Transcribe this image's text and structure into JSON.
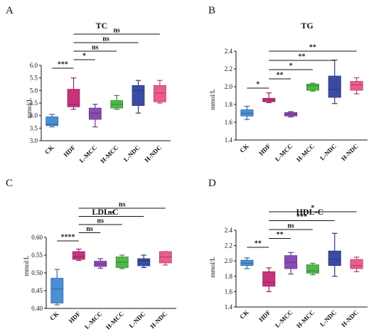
{
  "chart_data": [
    {
      "type": "box",
      "panel_letter": "A",
      "title": "TC",
      "ylabel": "mmol/L",
      "ylim": [
        3.0,
        6.0
      ],
      "yticks": [
        "3.0",
        "3.5",
        "4.0",
        "4.5",
        "5.0",
        "5.5",
        "6.0"
      ],
      "categories": [
        "CK",
        "HDF",
        "L-MCC",
        "H-MCC",
        "L-NDC",
        "H-NDC"
      ],
      "colors": [
        "#4a8fd6",
        "#c8327b",
        "#8b4bb5",
        "#4fb84a",
        "#3a4ba3",
        "#ec5b8c"
      ],
      "boxes": [
        {
          "min": 3.55,
          "q1": 3.6,
          "median": 3.65,
          "q3": 3.95,
          "max": 4.05
        },
        {
          "min": 4.25,
          "q1": 4.35,
          "median": 4.45,
          "q3": 5.05,
          "max": 5.5
        },
        {
          "min": 3.55,
          "q1": 3.85,
          "median": 4.1,
          "q3": 4.3,
          "max": 4.45
        },
        {
          "min": 4.25,
          "q1": 4.3,
          "median": 4.45,
          "q3": 4.6,
          "max": 4.8
        },
        {
          "min": 4.1,
          "q1": 4.4,
          "median": 5.0,
          "q3": 5.2,
          "max": 5.4
        },
        {
          "min": 4.5,
          "q1": 4.55,
          "median": 4.9,
          "q3": 5.2,
          "max": 5.4
        }
      ],
      "comparisons": [
        {
          "from": 0,
          "to": 1,
          "label": "***"
        },
        {
          "from": 1,
          "to": 2,
          "label": "*"
        },
        {
          "from": 1,
          "to": 3,
          "label": "ns"
        },
        {
          "from": 1,
          "to": 4,
          "label": "ns"
        },
        {
          "from": 1,
          "to": 5,
          "label": "ns"
        }
      ]
    },
    {
      "type": "box",
      "panel_letter": "B",
      "title": "TG",
      "ylabel": "mmol/L",
      "ylim": [
        1.4,
        2.4
      ],
      "yticks": [
        "1.4",
        "1.6",
        "1.8",
        "2.0",
        "2.2",
        "2.4"
      ],
      "categories": [
        "CK",
        "HDF",
        "L-MCC",
        "H-MCC",
        "L-NDC",
        "H-NDC"
      ],
      "colors": [
        "#4a8fd6",
        "#c8327b",
        "#8b4bb5",
        "#4fb84a",
        "#3a4ba3",
        "#ec5b8c"
      ],
      "boxes": [
        {
          "min": 1.63,
          "q1": 1.67,
          "median": 1.7,
          "q3": 1.74,
          "max": 1.78
        },
        {
          "min": 1.82,
          "q1": 1.83,
          "median": 1.85,
          "q3": 1.87,
          "max": 1.93
        },
        {
          "min": 1.66,
          "q1": 1.67,
          "median": 1.69,
          "q3": 1.71,
          "max": 1.72
        },
        {
          "min": 1.95,
          "q1": 1.96,
          "median": 2.01,
          "q3": 2.03,
          "max": 2.04
        },
        {
          "min": 1.81,
          "q1": 1.88,
          "median": 1.97,
          "q3": 2.12,
          "max": 2.3
        },
        {
          "min": 1.92,
          "q1": 1.96,
          "median": 2.02,
          "q3": 2.06,
          "max": 2.1
        }
      ],
      "comparisons": [
        {
          "from": 0,
          "to": 1,
          "label": "*"
        },
        {
          "from": 1,
          "to": 2,
          "label": "**"
        },
        {
          "from": 1,
          "to": 3,
          "label": "*"
        },
        {
          "from": 1,
          "to": 4,
          "label": "**"
        },
        {
          "from": 1,
          "to": 5,
          "label": "**"
        }
      ]
    },
    {
      "type": "box",
      "panel_letter": "C",
      "title": "LDL-C",
      "ylabel": "mmol/L",
      "ylim": [
        0.4,
        0.6
      ],
      "yticks": [
        "0.40",
        "0.45",
        "0.50",
        "0.55",
        "0.60"
      ],
      "categories": [
        "CK",
        "HDF",
        "L-MCC",
        "H-MCC",
        "L-NDC",
        "H-NDC"
      ],
      "colors": [
        "#4a8fd6",
        "#c8327b",
        "#8b4bb5",
        "#4fb84a",
        "#3a4ba3",
        "#ec5b8c"
      ],
      "boxes": [
        {
          "min": 0.41,
          "q1": 0.415,
          "median": 0.455,
          "q3": 0.485,
          "max": 0.51
        },
        {
          "min": 0.535,
          "q1": 0.538,
          "median": 0.545,
          "q3": 0.56,
          "max": 0.567
        },
        {
          "min": 0.513,
          "q1": 0.518,
          "median": 0.525,
          "q3": 0.533,
          "max": 0.54
        },
        {
          "min": 0.512,
          "q1": 0.515,
          "median": 0.53,
          "q3": 0.545,
          "max": 0.55
        },
        {
          "min": 0.515,
          "q1": 0.52,
          "median": 0.535,
          "q3": 0.54,
          "max": 0.55
        },
        {
          "min": 0.522,
          "q1": 0.528,
          "median": 0.545,
          "q3": 0.56,
          "max": 0.56
        }
      ],
      "comparisons": [
        {
          "from": 0,
          "to": 1,
          "label": "****"
        },
        {
          "from": 1,
          "to": 2,
          "label": "ns"
        },
        {
          "from": 1,
          "to": 3,
          "label": "ns"
        },
        {
          "from": 1,
          "to": 4,
          "label": "ns"
        },
        {
          "from": 1,
          "to": 5,
          "label": "ns"
        }
      ]
    },
    {
      "type": "box",
      "panel_letter": "D",
      "title": "HDL-C",
      "ylabel": "mmol/L",
      "ylim": [
        1.4,
        2.4
      ],
      "yticks": [
        "1.4",
        "1.6",
        "1.8",
        "2.0",
        "2.2",
        "2.4"
      ],
      "categories": [
        "CK",
        "HDF",
        "L-MCC",
        "H-MCC",
        "L-NDC",
        "H-NDC"
      ],
      "colors": [
        "#4a8fd6",
        "#c8327b",
        "#8b4bb5",
        "#4fb84a",
        "#3a4ba3",
        "#ec5b8c"
      ],
      "boxes": [
        {
          "min": 1.9,
          "q1": 1.94,
          "median": 1.97,
          "q3": 2.01,
          "max": 2.04
        },
        {
          "min": 1.6,
          "q1": 1.67,
          "median": 1.72,
          "q3": 1.86,
          "max": 1.91
        },
        {
          "min": 1.83,
          "q1": 1.9,
          "median": 1.98,
          "q3": 2.07,
          "max": 2.11
        },
        {
          "min": 1.82,
          "q1": 1.84,
          "median": 1.87,
          "q3": 1.95,
          "max": 1.97
        },
        {
          "min": 1.8,
          "q1": 1.94,
          "median": 2.02,
          "q3": 2.13,
          "max": 2.36
        },
        {
          "min": 1.86,
          "q1": 1.9,
          "median": 1.94,
          "q3": 2.02,
          "max": 2.05
        }
      ],
      "comparisons": [
        {
          "from": 0,
          "to": 1,
          "label": "**"
        },
        {
          "from": 1,
          "to": 2,
          "label": "**"
        },
        {
          "from": 1,
          "to": 3,
          "label": "ns"
        },
        {
          "from": 1,
          "to": 4,
          "label": "***"
        },
        {
          "from": 1,
          "to": 5,
          "label": "*"
        }
      ]
    }
  ]
}
